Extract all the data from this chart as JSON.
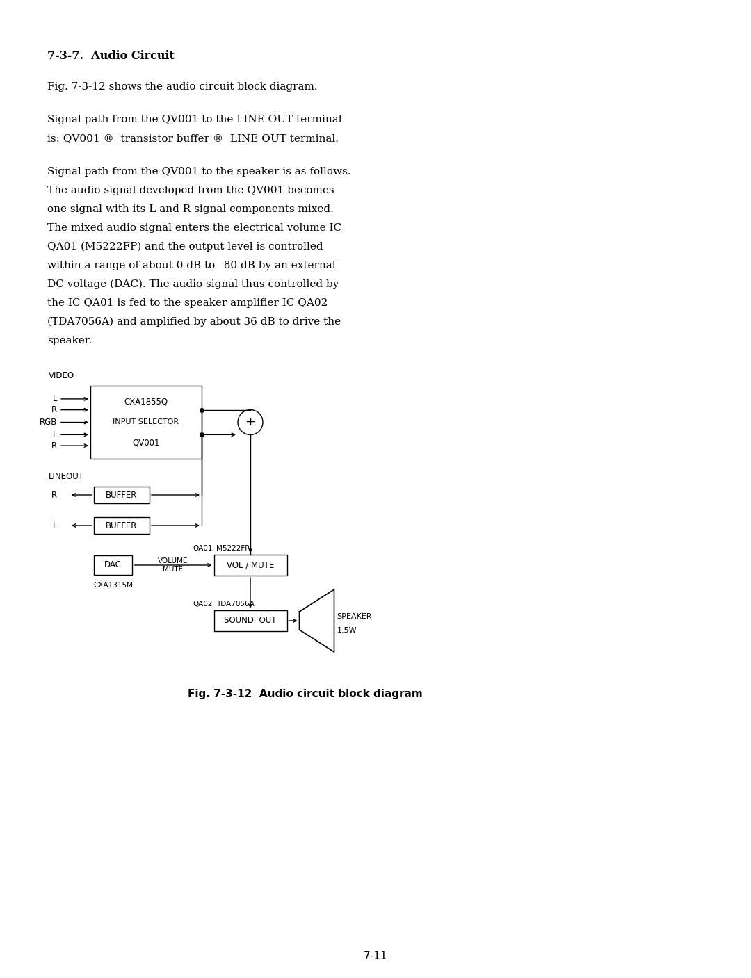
{
  "title": "7-3-7.  Audio Circuit",
  "paragraph1": "Fig. 7-3-12 shows the audio circuit block diagram.",
  "paragraph2_line1": "Signal path from the QV001 to the LINE OUT terminal",
  "paragraph2_line2": "is: QV001 ®  transistor buffer ®  LINE OUT terminal.",
  "paragraph3_lines": [
    "Signal path from the QV001 to the speaker is as follows.",
    "The audio signal developed from the QV001 becomes",
    "one signal with its L and R signal components mixed.",
    "The mixed audio signal enters the electrical volume IC",
    "QA01 (M5222FP) and the output level is controlled",
    "within a range of about 0 dB to –80 dB by an external",
    "DC voltage (DAC). The audio signal thus controlled by",
    "the IC QA01 is fed to the speaker amplifier IC QA02",
    "(TDA7056A) and amplified by about 36 dB to drive the",
    "speaker."
  ],
  "fig_caption": "Fig. 7-3-12  Audio circuit block diagram",
  "page_number": "7-11",
  "bg_color": "#ffffff",
  "text_color": "#000000"
}
